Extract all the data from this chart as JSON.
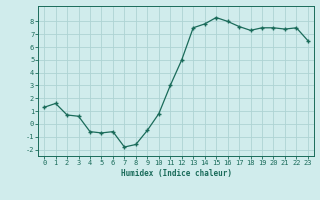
{
  "x": [
    0,
    1,
    2,
    3,
    4,
    5,
    6,
    7,
    8,
    9,
    10,
    11,
    12,
    13,
    14,
    15,
    16,
    17,
    18,
    19,
    20,
    21,
    22,
    23
  ],
  "y": [
    1.3,
    1.6,
    0.7,
    0.6,
    -0.6,
    -0.7,
    -0.6,
    -1.8,
    -1.6,
    -0.5,
    0.8,
    3.0,
    5.0,
    7.5,
    7.8,
    8.3,
    8.0,
    7.6,
    7.3,
    7.5,
    7.5,
    7.4,
    7.5,
    6.5
  ],
  "line_color": "#1a6b5a",
  "marker": "+",
  "bg_color": "#d0ecec",
  "grid_color": "#aed4d4",
  "xlabel": "Humidex (Indice chaleur)",
  "ylim": [
    -2.5,
    9.2
  ],
  "xlim": [
    -0.5,
    23.5
  ],
  "yticks": [
    -2,
    -1,
    0,
    1,
    2,
    3,
    4,
    5,
    6,
    7,
    8
  ],
  "xticks": [
    0,
    1,
    2,
    3,
    4,
    5,
    6,
    7,
    8,
    9,
    10,
    11,
    12,
    13,
    14,
    15,
    16,
    17,
    18,
    19,
    20,
    21,
    22,
    23
  ],
  "tick_color": "#1a6b5a",
  "label_fontsize": 5.5,
  "tick_fontsize": 5.0
}
